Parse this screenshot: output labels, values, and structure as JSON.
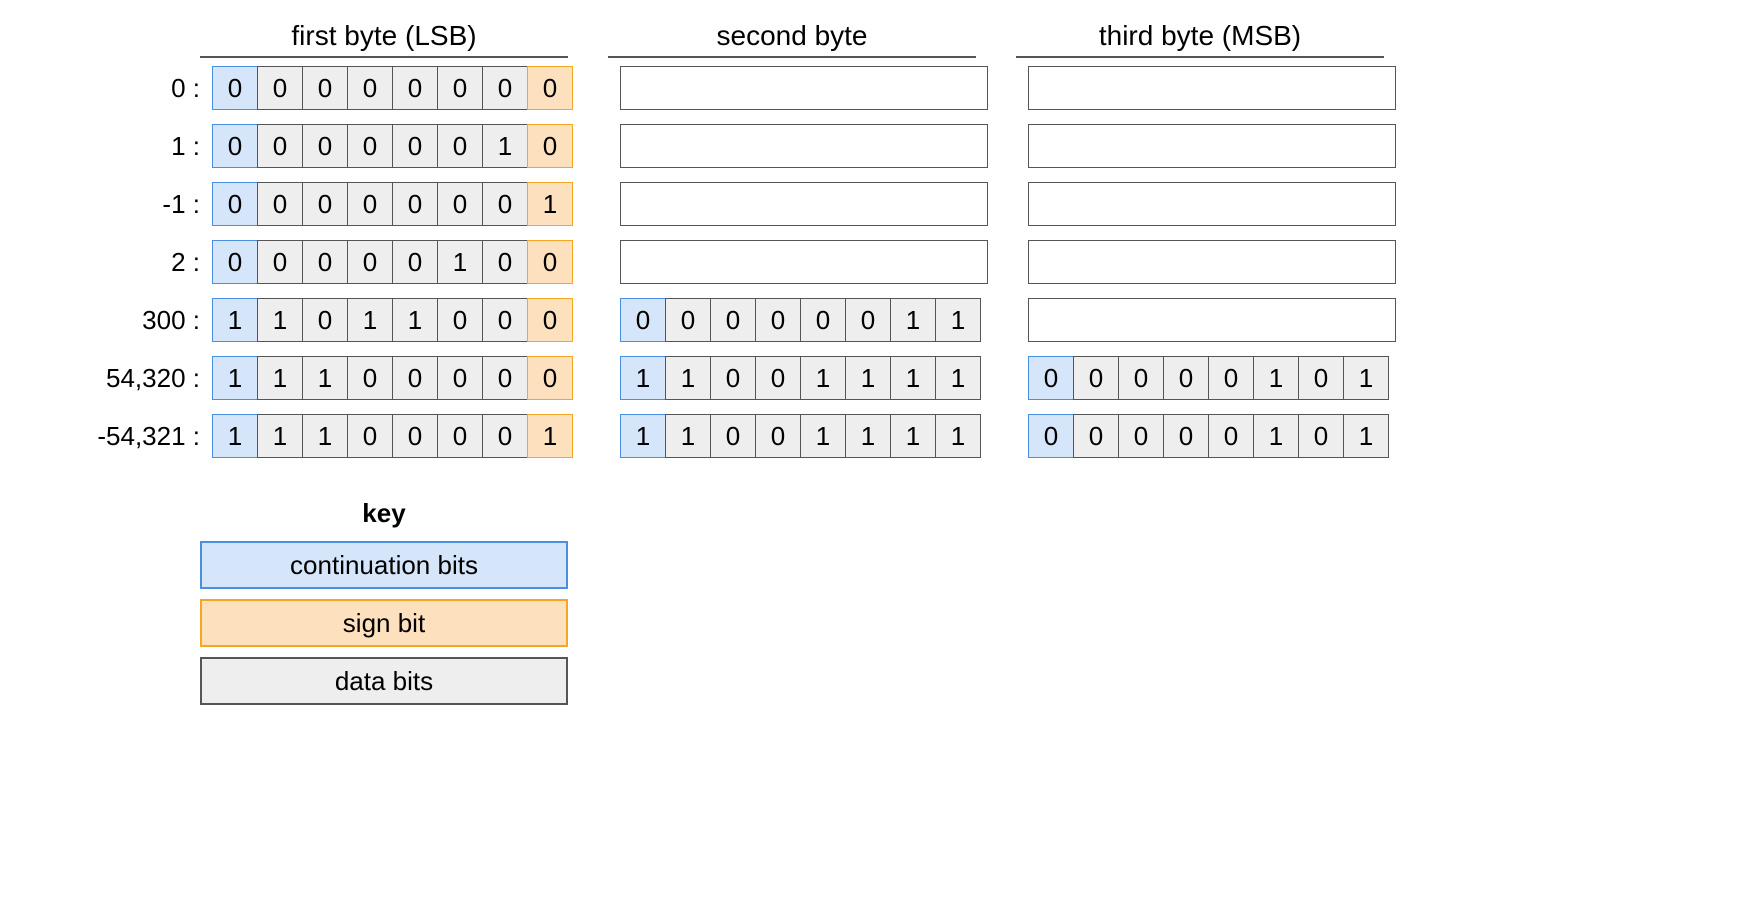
{
  "colors": {
    "continuation_fill": "#d5e5fa",
    "continuation_border": "#4a90e2",
    "sign_fill": "#fde1be",
    "sign_border": "#f5a623",
    "data_fill": "#eeeeee",
    "data_border": "#555555",
    "empty_border": "#555555",
    "text": "#000000",
    "background": "#ffffff"
  },
  "layout": {
    "bit_width": 46,
    "bit_height": 44,
    "byte_gap": 40,
    "label_width": 160,
    "font_size": 26
  },
  "headers": [
    "first byte (LSB)",
    "second byte",
    "third byte (MSB)"
  ],
  "rows": [
    {
      "label": "0  :",
      "bytes": [
        {
          "bits": [
            "0",
            "0",
            "0",
            "0",
            "0",
            "0",
            "0",
            "0"
          ],
          "types": [
            "cont",
            "data",
            "data",
            "data",
            "data",
            "data",
            "data",
            "sign"
          ]
        },
        {
          "empty": true
        },
        {
          "empty": true
        }
      ]
    },
    {
      "label": "1  :",
      "bytes": [
        {
          "bits": [
            "0",
            "0",
            "0",
            "0",
            "0",
            "0",
            "1",
            "0"
          ],
          "types": [
            "cont",
            "data",
            "data",
            "data",
            "data",
            "data",
            "data",
            "sign"
          ]
        },
        {
          "empty": true
        },
        {
          "empty": true
        }
      ]
    },
    {
      "label": "-1  :",
      "bytes": [
        {
          "bits": [
            "0",
            "0",
            "0",
            "0",
            "0",
            "0",
            "0",
            "1"
          ],
          "types": [
            "cont",
            "data",
            "data",
            "data",
            "data",
            "data",
            "data",
            "sign"
          ]
        },
        {
          "empty": true
        },
        {
          "empty": true
        }
      ]
    },
    {
      "label": "2  :",
      "bytes": [
        {
          "bits": [
            "0",
            "0",
            "0",
            "0",
            "0",
            "1",
            "0",
            "0"
          ],
          "types": [
            "cont",
            "data",
            "data",
            "data",
            "data",
            "data",
            "data",
            "sign"
          ]
        },
        {
          "empty": true
        },
        {
          "empty": true
        }
      ]
    },
    {
      "label": "300  :",
      "bytes": [
        {
          "bits": [
            "1",
            "1",
            "0",
            "1",
            "1",
            "0",
            "0",
            "0"
          ],
          "types": [
            "cont",
            "data",
            "data",
            "data",
            "data",
            "data",
            "data",
            "sign"
          ]
        },
        {
          "bits": [
            "0",
            "0",
            "0",
            "0",
            "0",
            "0",
            "1",
            "1"
          ],
          "types": [
            "cont",
            "data",
            "data",
            "data",
            "data",
            "data",
            "data",
            "data"
          ]
        },
        {
          "empty": true
        }
      ]
    },
    {
      "label": "54,320  :",
      "bytes": [
        {
          "bits": [
            "1",
            "1",
            "1",
            "0",
            "0",
            "0",
            "0",
            "0"
          ],
          "types": [
            "cont",
            "data",
            "data",
            "data",
            "data",
            "data",
            "data",
            "sign"
          ]
        },
        {
          "bits": [
            "1",
            "1",
            "0",
            "0",
            "1",
            "1",
            "1",
            "1"
          ],
          "types": [
            "cont",
            "data",
            "data",
            "data",
            "data",
            "data",
            "data",
            "data"
          ]
        },
        {
          "bits": [
            "0",
            "0",
            "0",
            "0",
            "0",
            "1",
            "0",
            "1"
          ],
          "types": [
            "cont",
            "data",
            "data",
            "data",
            "data",
            "data",
            "data",
            "data"
          ]
        }
      ]
    },
    {
      "label": "-54,321  :",
      "bytes": [
        {
          "bits": [
            "1",
            "1",
            "1",
            "0",
            "0",
            "0",
            "0",
            "1"
          ],
          "types": [
            "cont",
            "data",
            "data",
            "data",
            "data",
            "data",
            "data",
            "sign"
          ]
        },
        {
          "bits": [
            "1",
            "1",
            "0",
            "0",
            "1",
            "1",
            "1",
            "1"
          ],
          "types": [
            "cont",
            "data",
            "data",
            "data",
            "data",
            "data",
            "data",
            "data"
          ]
        },
        {
          "bits": [
            "0",
            "0",
            "0",
            "0",
            "0",
            "1",
            "0",
            "1"
          ],
          "types": [
            "cont",
            "data",
            "data",
            "data",
            "data",
            "data",
            "data",
            "data"
          ]
        }
      ]
    }
  ],
  "key": {
    "title": "key",
    "items": [
      {
        "label": "continuation bits",
        "type": "cont"
      },
      {
        "label": "sign bit",
        "type": "sign"
      },
      {
        "label": "data bits",
        "type": "data"
      }
    ]
  }
}
